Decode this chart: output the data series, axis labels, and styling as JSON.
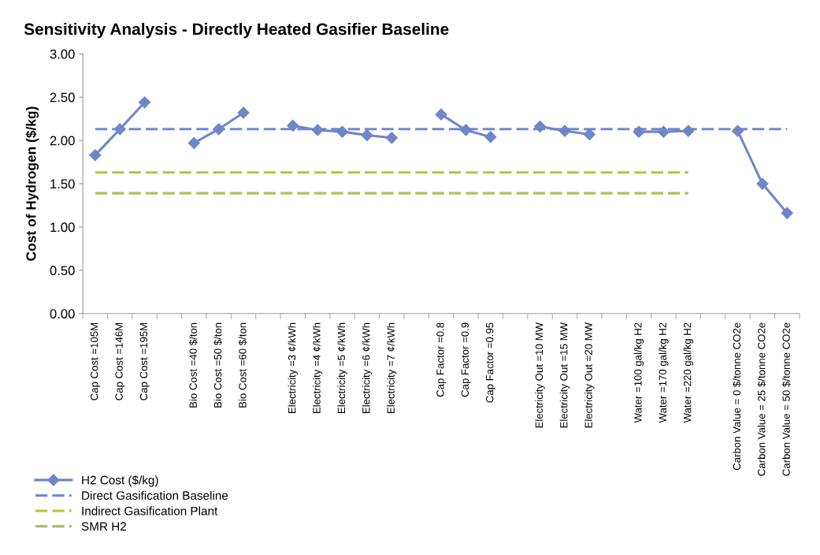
{
  "chart_data": {
    "type": "line",
    "title": "Sensitivity Analysis - Directly Heated Gasifier Baseline",
    "ylabel": "Cost of Hydrogen ($/kg)",
    "categories": [
      "Cap Cost =105M",
      "Cap Cost =146M",
      "Cap Cost =195M",
      null,
      "Bio Cost =40 $/ton",
      "Bio Cost =50 $/ton",
      "Bio Cost =60 $/ton",
      null,
      "Electricity =3 ¢/kWh",
      "Electricity =4 ¢/kWh",
      "Electricity =5 ¢/kWh",
      "Electricity =6 ¢/kWh",
      "Electricity =7 ¢/kWh",
      null,
      "Cap Factor =0.8",
      "Cap Factor =0.9",
      "Cap Factor =0.95",
      null,
      "Electricity Out =10 MW",
      "Electricity Out =15 MW",
      "Electricity Out =20 MW",
      null,
      "Water =100 gal/kg H2",
      "Water =170 gal/kg H2",
      "Water =220 gal/kg H2",
      null,
      "Carbon Value = 0 $/tonne CO2e",
      "Carbon Value = 25 $/tonne CO2e",
      "Carbon Value = 50 $/tonne CO2e"
    ],
    "series": [
      {
        "name": "H2 Cost ($/kg)",
        "color": "#6f86c9",
        "marker": "diamond",
        "line_style": "solid",
        "values": [
          1.83,
          2.13,
          2.44,
          null,
          1.97,
          2.13,
          2.32,
          null,
          2.17,
          2.12,
          2.1,
          2.06,
          2.03,
          null,
          2.3,
          2.12,
          2.04,
          null,
          2.16,
          2.11,
          2.07,
          null,
          2.1,
          2.1,
          2.11,
          null,
          2.11,
          1.5,
          1.16
        ]
      },
      {
        "name": "Direct Gasification Baseline",
        "color": "#7189d0",
        "marker": "none",
        "line_style": "dashed",
        "values": [
          2.13,
          2.13,
          2.13,
          2.13,
          2.13,
          2.13,
          2.13,
          2.13,
          2.13,
          2.13,
          2.13,
          2.13,
          2.13,
          2.13,
          2.13,
          2.13,
          2.13,
          2.13,
          2.13,
          2.13,
          2.13,
          2.13,
          2.13,
          2.13,
          2.13,
          2.13,
          2.13,
          2.13,
          2.13
        ]
      },
      {
        "name": "Indirect Gasification Plant",
        "color": "#b8c43a",
        "marker": "none",
        "line_style": "dashed",
        "values": [
          1.63,
          1.63,
          1.63,
          1.63,
          1.63,
          1.63,
          1.63,
          1.63,
          1.63,
          1.63,
          1.63,
          1.63,
          1.63,
          1.63,
          1.63,
          1.63,
          1.63,
          1.63,
          1.63,
          1.63,
          1.63,
          1.63,
          1.63,
          1.63,
          1.63,
          null,
          null,
          null,
          null
        ]
      },
      {
        "name": "SMR H2",
        "color": "#aac35c",
        "marker": "none",
        "line_style": "dashed",
        "values": [
          1.39,
          1.39,
          1.39,
          1.39,
          1.39,
          1.39,
          1.39,
          1.39,
          1.39,
          1.39,
          1.39,
          1.39,
          1.39,
          1.39,
          1.39,
          1.39,
          1.39,
          1.39,
          1.39,
          1.39,
          1.39,
          1.39,
          1.39,
          1.39,
          1.39,
          null,
          null,
          null,
          null
        ]
      }
    ],
    "ylim": [
      0,
      3
    ],
    "yticks": [
      {
        "value": 0,
        "label": "0.00"
      },
      {
        "value": 0.5,
        "label": "0.50"
      },
      {
        "value": 1,
        "label": "1.00"
      },
      {
        "value": 1.5,
        "label": "1.50"
      },
      {
        "value": 2,
        "label": "2.00"
      },
      {
        "value": 2.5,
        "label": "2.50"
      },
      {
        "value": 3,
        "label": "3.00"
      }
    ],
    "grid": false,
    "legend": "bottom left"
  }
}
